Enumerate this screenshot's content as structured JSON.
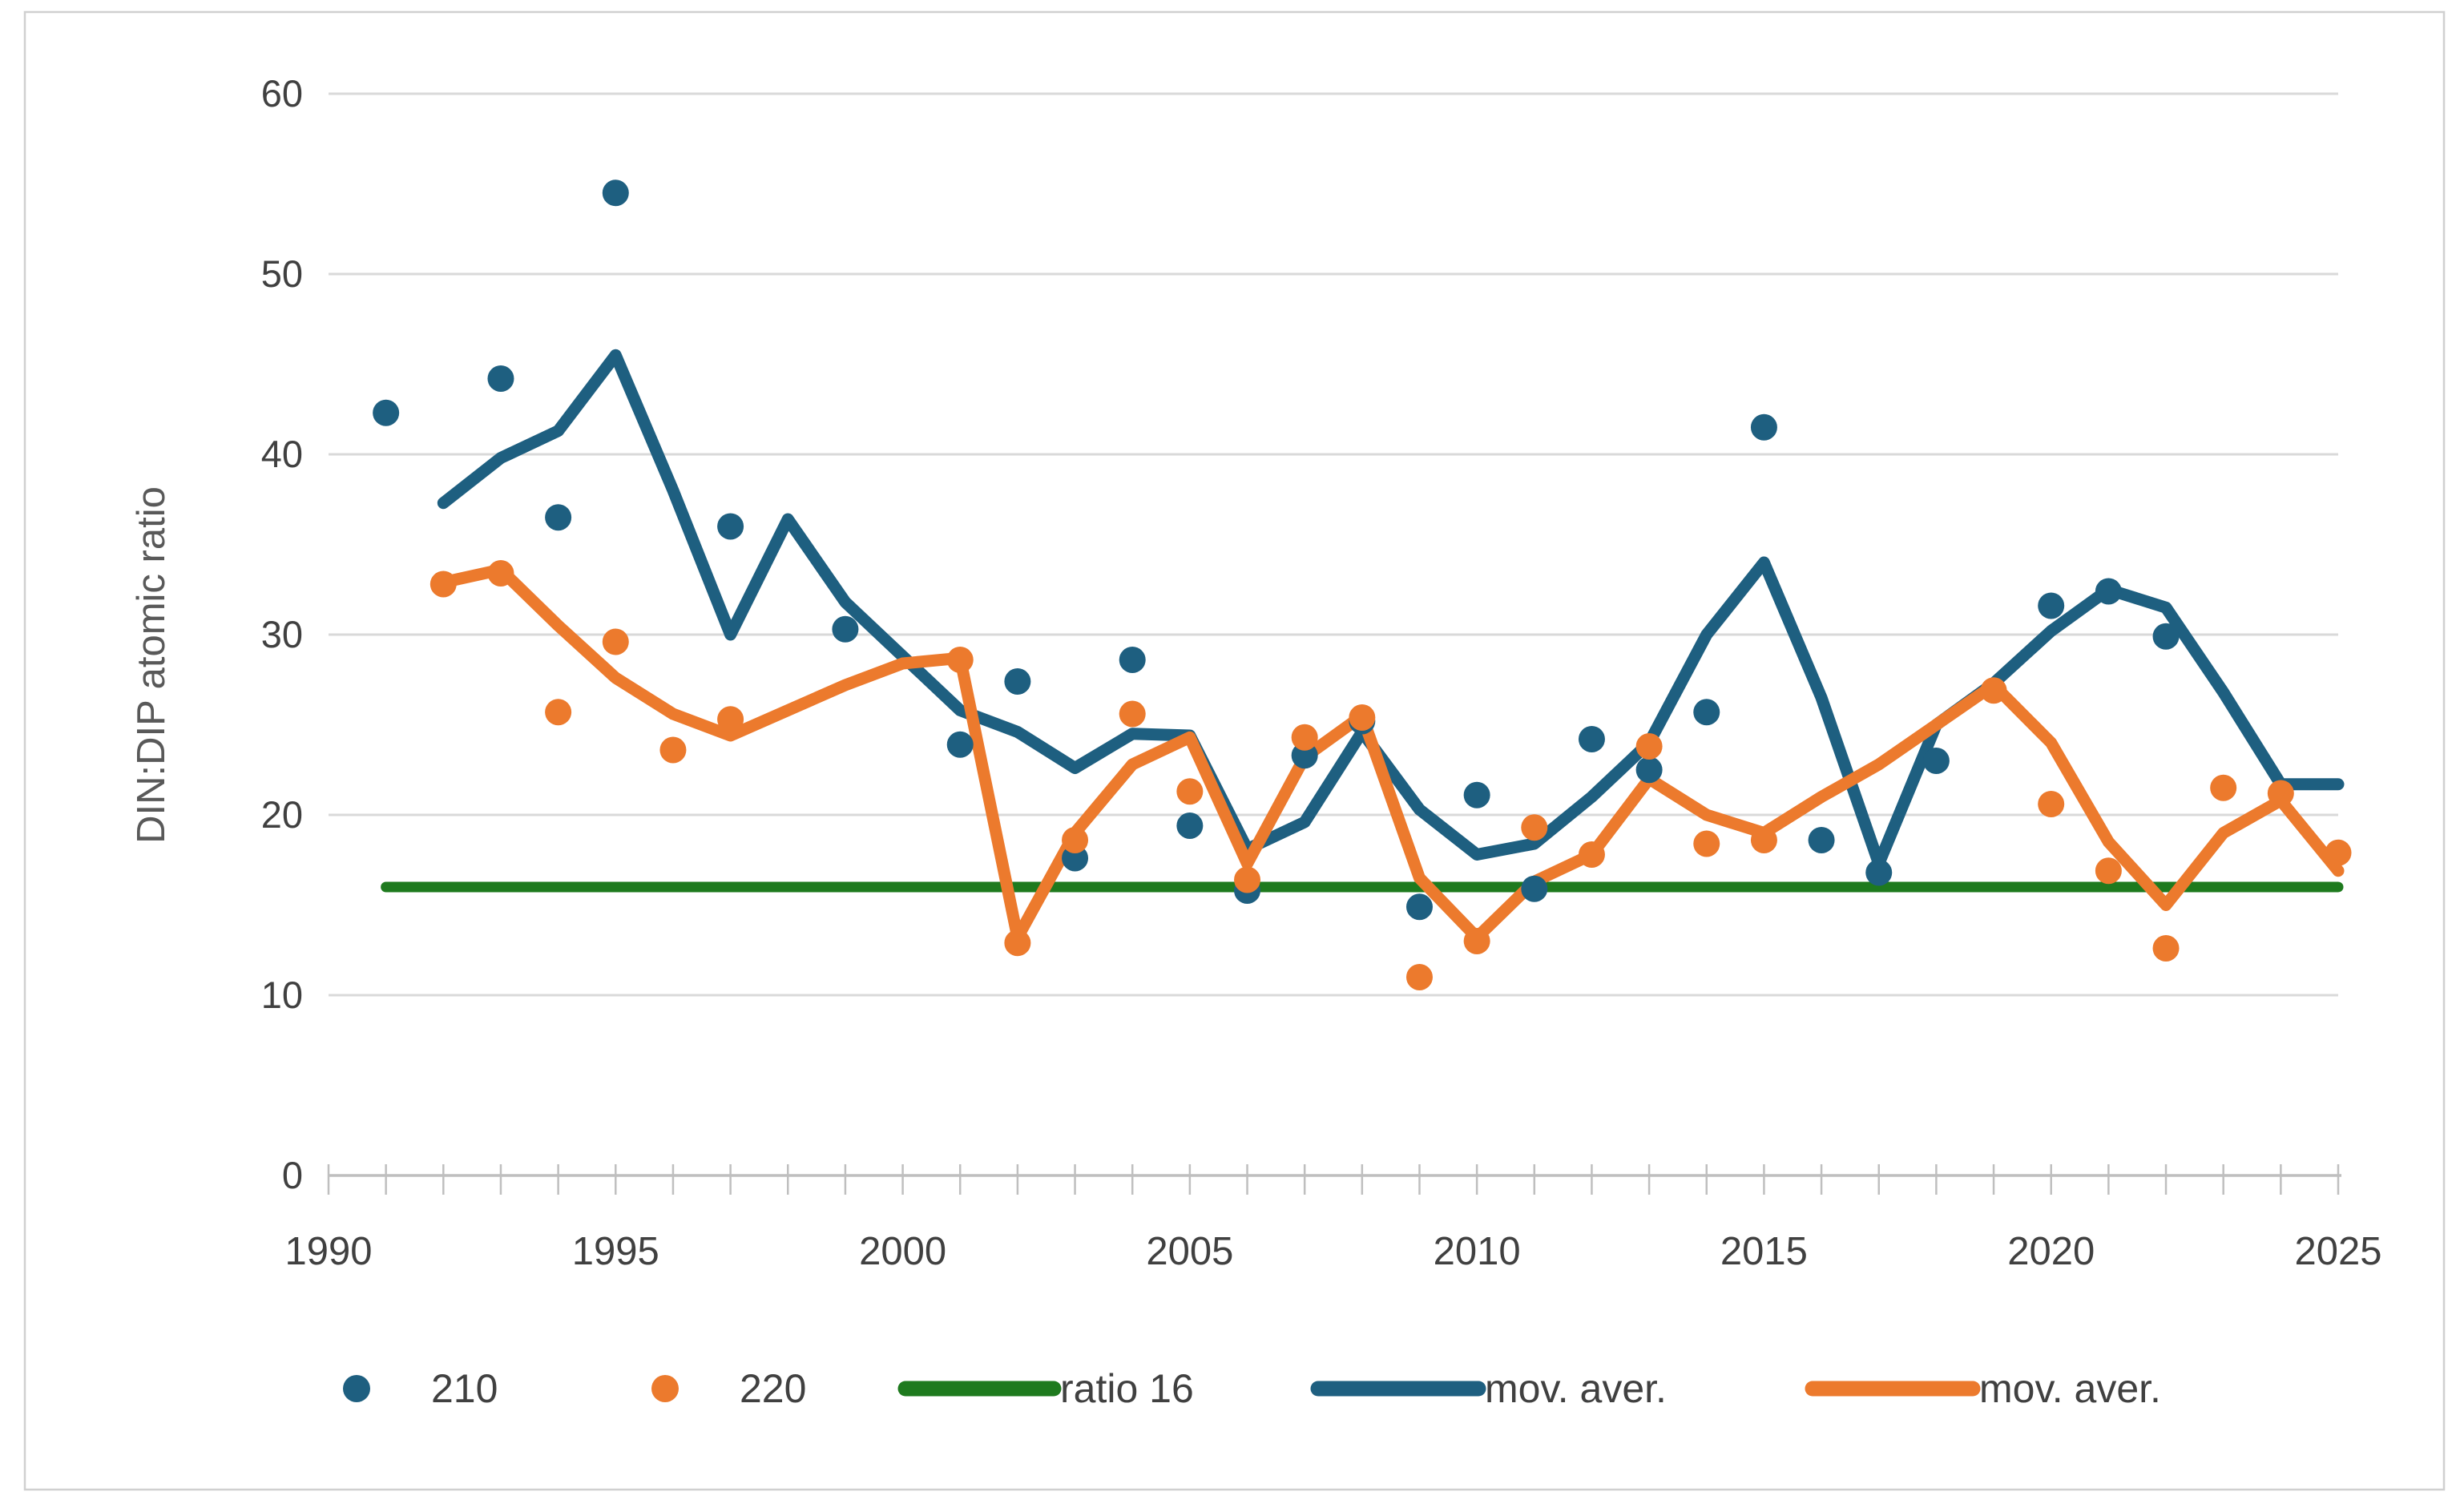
{
  "colors": {
    "blue": "#1E5F80",
    "orange": "#EC7A2D",
    "green": "#1E7A1E",
    "gridline": "#D9D9D9",
    "axis": "#BFBFBF",
    "tick_text": "#404040",
    "axis_title_text": "#595959",
    "border": "#D0D0D0",
    "background": "#FFFFFF"
  },
  "legend": {
    "items": [
      {
        "label": "210",
        "marker": "dot",
        "color": "#1E5F80"
      },
      {
        "label": "220",
        "marker": "dot",
        "color": "#EC7A2D"
      },
      {
        "label": "ratio 16",
        "marker": "line",
        "color": "#1E7A1E"
      },
      {
        "label": "mov. aver.",
        "marker": "line",
        "color": "#1E5F80"
      },
      {
        "label": "mov. aver.",
        "marker": "line",
        "color": "#EC7A2D"
      }
    ]
  },
  "chart_data": {
    "type": "scatter",
    "title": "",
    "xlabel": "",
    "ylabel": "DIN:DIP atomic ratio",
    "xlim": [
      1990,
      2025
    ],
    "ylim": [
      0,
      60
    ],
    "y_ticks": [
      0,
      10,
      20,
      30,
      40,
      50,
      60
    ],
    "x_major_ticks": [
      1990,
      1995,
      2000,
      2005,
      2010,
      2015,
      2020,
      2025
    ],
    "x_minor_tick_step": 1,
    "grid": "horizontal",
    "legend_position": "bottom",
    "series": [
      {
        "name": "210",
        "type": "scatter",
        "color": "#1E5F80",
        "points": [
          [
            1991,
            42.3
          ],
          [
            1993,
            44.2
          ],
          [
            1994,
            36.5
          ],
          [
            1995,
            54.5
          ],
          [
            1997,
            36.0
          ],
          [
            1999,
            30.3
          ],
          [
            2001,
            23.9
          ],
          [
            2002,
            27.4
          ],
          [
            2003,
            17.6
          ],
          [
            2004,
            28.6
          ],
          [
            2005,
            19.4
          ],
          [
            2006,
            15.8
          ],
          [
            2007,
            23.3
          ],
          [
            2008,
            25.2
          ],
          [
            2009,
            14.9
          ],
          [
            2010,
            21.1
          ],
          [
            2011,
            15.9
          ],
          [
            2012,
            24.2
          ],
          [
            2013,
            22.5
          ],
          [
            2014,
            25.7
          ],
          [
            2015,
            41.5
          ],
          [
            2016,
            18.6
          ],
          [
            2017,
            16.8
          ],
          [
            2018,
            23.0
          ],
          [
            2020,
            31.6
          ],
          [
            2021,
            32.4
          ],
          [
            2022,
            29.9
          ]
        ]
      },
      {
        "name": "220",
        "type": "scatter",
        "color": "#EC7A2D",
        "points": [
          [
            1992,
            32.8
          ],
          [
            1993,
            33.4
          ],
          [
            1994,
            25.7
          ],
          [
            1995,
            29.6
          ],
          [
            1996,
            23.6
          ],
          [
            1997,
            25.3
          ],
          [
            2001,
            28.6
          ],
          [
            2002,
            12.9
          ],
          [
            2003,
            18.6
          ],
          [
            2004,
            25.6
          ],
          [
            2005,
            21.3
          ],
          [
            2006,
            16.4
          ],
          [
            2007,
            24.3
          ],
          [
            2008,
            25.4
          ],
          [
            2009,
            11.0
          ],
          [
            2010,
            13.0
          ],
          [
            2011,
            19.3
          ],
          [
            2012,
            17.8
          ],
          [
            2013,
            23.8
          ],
          [
            2014,
            18.4
          ],
          [
            2015,
            18.6
          ],
          [
            2019,
            26.9
          ],
          [
            2020,
            20.6
          ],
          [
            2021,
            16.9
          ],
          [
            2022,
            12.6
          ],
          [
            2023,
            21.5
          ],
          [
            2024,
            21.2
          ],
          [
            2025,
            17.9
          ]
        ]
      },
      {
        "name": "ratio 16",
        "type": "line",
        "color": "#1E7A1E",
        "stroke_width": 13,
        "points": [
          [
            1991,
            16
          ],
          [
            2025,
            16
          ]
        ]
      },
      {
        "name": "mov. aver.",
        "series_of": "210",
        "type": "line",
        "color": "#1E5F80",
        "stroke_width": 15,
        "points": [
          [
            1992,
            37.3
          ],
          [
            1993,
            39.8
          ],
          [
            1994,
            41.3
          ],
          [
            1995,
            45.5
          ],
          [
            1996,
            38.0
          ],
          [
            1997,
            30.0
          ],
          [
            1998,
            36.4
          ],
          [
            1999,
            31.8
          ],
          [
            2000,
            28.8
          ],
          [
            2001,
            25.8
          ],
          [
            2002,
            24.6
          ],
          [
            2003,
            22.6
          ],
          [
            2004,
            24.5
          ],
          [
            2005,
            24.4
          ],
          [
            2006,
            18.1
          ],
          [
            2007,
            19.6
          ],
          [
            2008,
            24.6
          ],
          [
            2009,
            20.3
          ],
          [
            2010,
            17.8
          ],
          [
            2011,
            18.4
          ],
          [
            2012,
            21.0
          ],
          [
            2013,
            24.0
          ],
          [
            2014,
            30.0
          ],
          [
            2015,
            34.0
          ],
          [
            2016,
            26.5
          ],
          [
            2017,
            17.3
          ],
          [
            2018,
            25.0
          ],
          [
            2019,
            27.3
          ],
          [
            2020,
            30.2
          ],
          [
            2021,
            32.5
          ],
          [
            2022,
            31.5
          ],
          [
            2023,
            26.8
          ],
          [
            2024,
            21.7
          ],
          [
            2025,
            21.7
          ]
        ]
      },
      {
        "name": "mov. aver.",
        "series_of": "220",
        "type": "line",
        "color": "#EC7A2D",
        "stroke_width": 15,
        "points": [
          [
            1992,
            32.9
          ],
          [
            1993,
            33.6
          ],
          [
            1994,
            30.5
          ],
          [
            1995,
            27.6
          ],
          [
            1996,
            25.6
          ],
          [
            1997,
            24.4
          ],
          [
            1998,
            25.8
          ],
          [
            1999,
            27.2
          ],
          [
            2000,
            28.4
          ],
          [
            2001,
            28.7
          ],
          [
            2002,
            13.2
          ],
          [
            2003,
            19.0
          ],
          [
            2004,
            22.8
          ],
          [
            2005,
            24.3
          ],
          [
            2006,
            17.3
          ],
          [
            2007,
            23.2
          ],
          [
            2008,
            25.5
          ],
          [
            2009,
            16.5
          ],
          [
            2010,
            13.2
          ],
          [
            2011,
            16.3
          ],
          [
            2012,
            17.8
          ],
          [
            2013,
            22.0
          ],
          [
            2014,
            20.0
          ],
          [
            2015,
            19.0
          ],
          [
            2016,
            21.0
          ],
          [
            2017,
            22.8
          ],
          [
            2018,
            25.0
          ],
          [
            2019,
            27.2
          ],
          [
            2020,
            24.0
          ],
          [
            2021,
            18.5
          ],
          [
            2022,
            15.0
          ],
          [
            2023,
            19.0
          ],
          [
            2024,
            20.8
          ],
          [
            2025,
            16.9
          ]
        ]
      }
    ]
  }
}
